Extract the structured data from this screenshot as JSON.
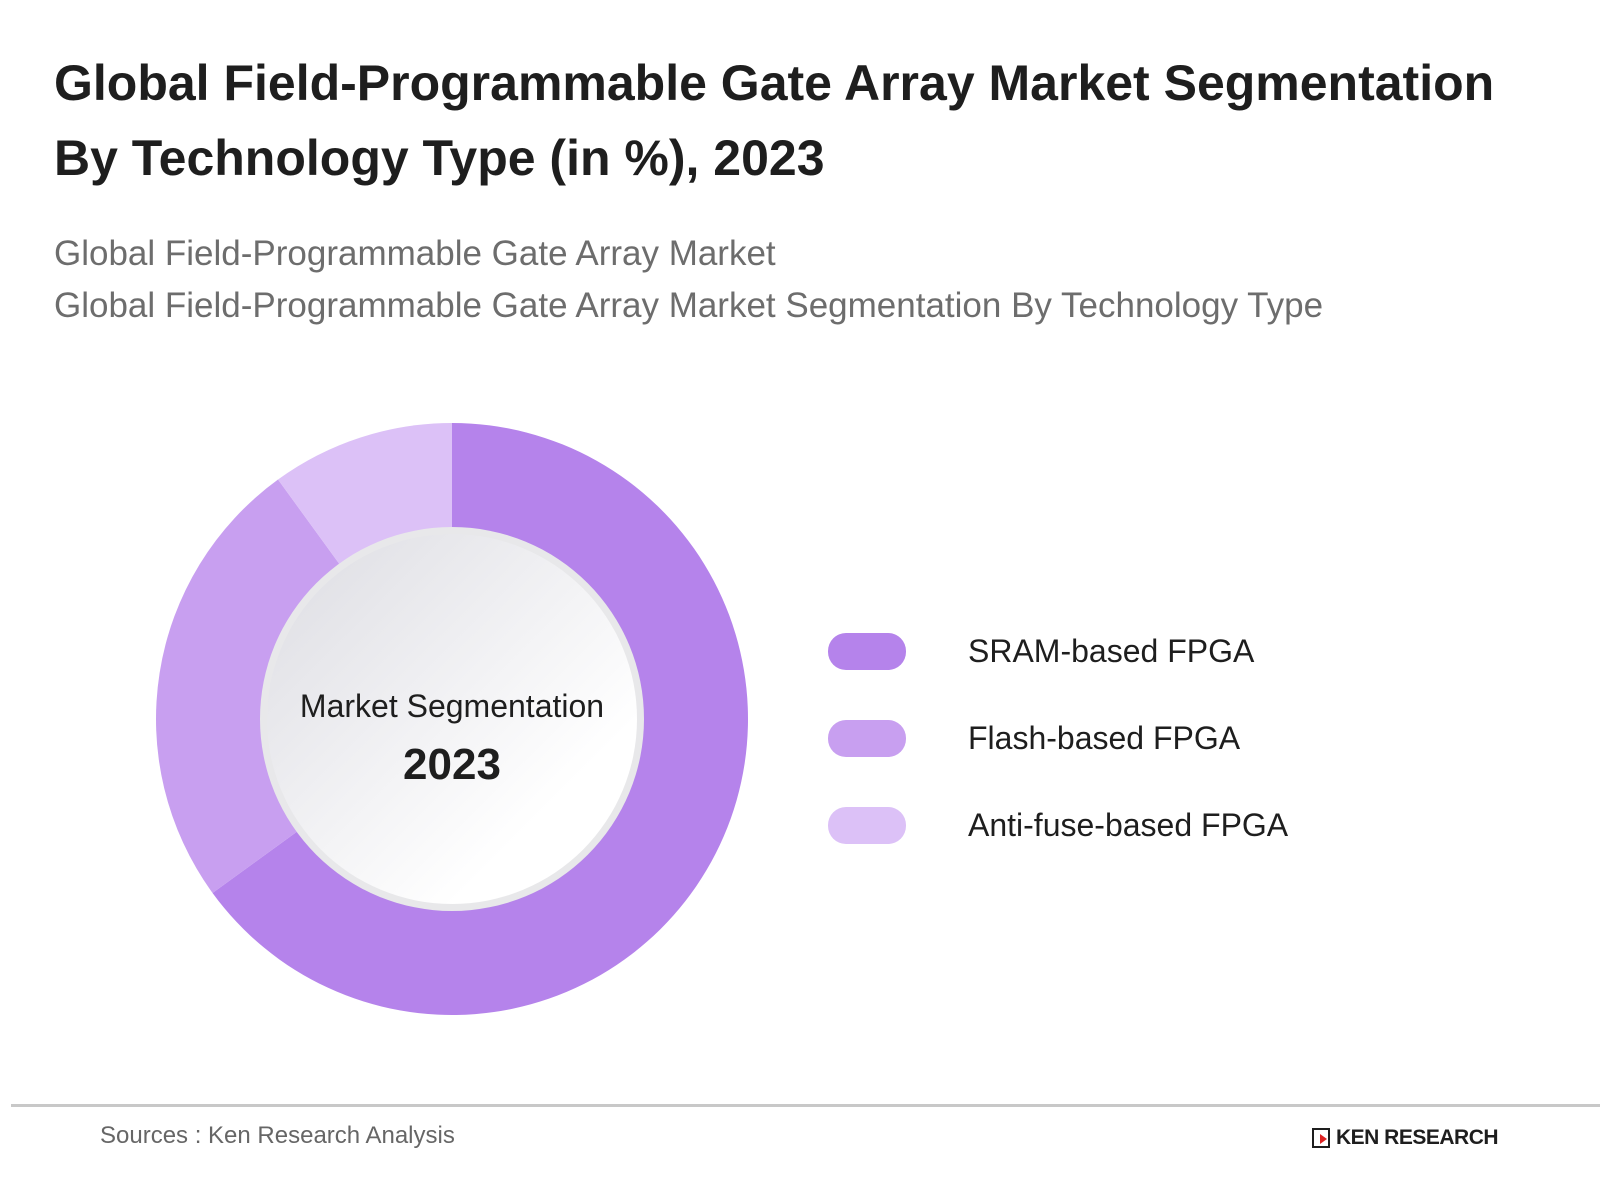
{
  "title_line1": "Global Field-Programmable Gate Array Market Segmentation",
  "title_line2": "By Technology Type (in %), 2023",
  "subtitle_line1": "Global Field-Programmable Gate Array Market",
  "subtitle_line2": "Global Field-Programmable Gate Array Market Segmentation By Technology Type",
  "chart_data": {
    "type": "pie",
    "variant": "donut",
    "title": "Global Field-Programmable Gate Array Market Segmentation By Technology Type (in %), 2023",
    "center_label": "Market Segmentation",
    "center_value": "2023",
    "categories": [
      "SRAM-based FPGA",
      "Flash-based FPGA",
      "Anti-fuse-based FPGA"
    ],
    "values": [
      65,
      25,
      10
    ],
    "colors": [
      "#b583eb",
      "#c89ff0",
      "#dcc1f7"
    ],
    "legend_position": "right"
  },
  "footer": {
    "source": "Sources : Ken Research Analysis",
    "logo_text": "KEN RESEARCH"
  }
}
